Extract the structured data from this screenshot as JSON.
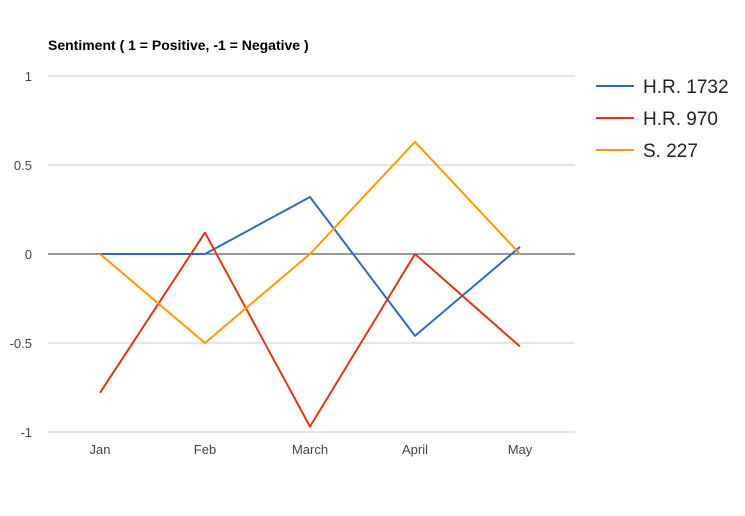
{
  "chart_data": {
    "type": "line",
    "title": "Sentiment ( 1 = Positive, -1 = Negative )",
    "xlabel": "",
    "ylabel": "",
    "categories": [
      "Jan",
      "Feb",
      "March",
      "April",
      "May"
    ],
    "ylim": [
      -1,
      1
    ],
    "yticks": [
      1,
      0.5,
      0,
      -0.5,
      -1
    ],
    "ytick_labels": [
      "1",
      "0.5",
      "0",
      "-0.5",
      "-1"
    ],
    "grid": true,
    "legend_position": "right",
    "series": [
      {
        "name": "H.R. 1732",
        "color": "#3366cc",
        "values": [
          0,
          0,
          0.32,
          -0.46,
          0.04
        ]
      },
      {
        "name": "H.R. 970",
        "color": "#dc3912",
        "values": [
          -0.78,
          0.12,
          -0.97,
          0,
          -0.52
        ]
      },
      {
        "name": "S. 227",
        "color": "#ff9900",
        "values": [
          0,
          -0.5,
          0,
          0.63,
          0
        ]
      }
    ]
  }
}
